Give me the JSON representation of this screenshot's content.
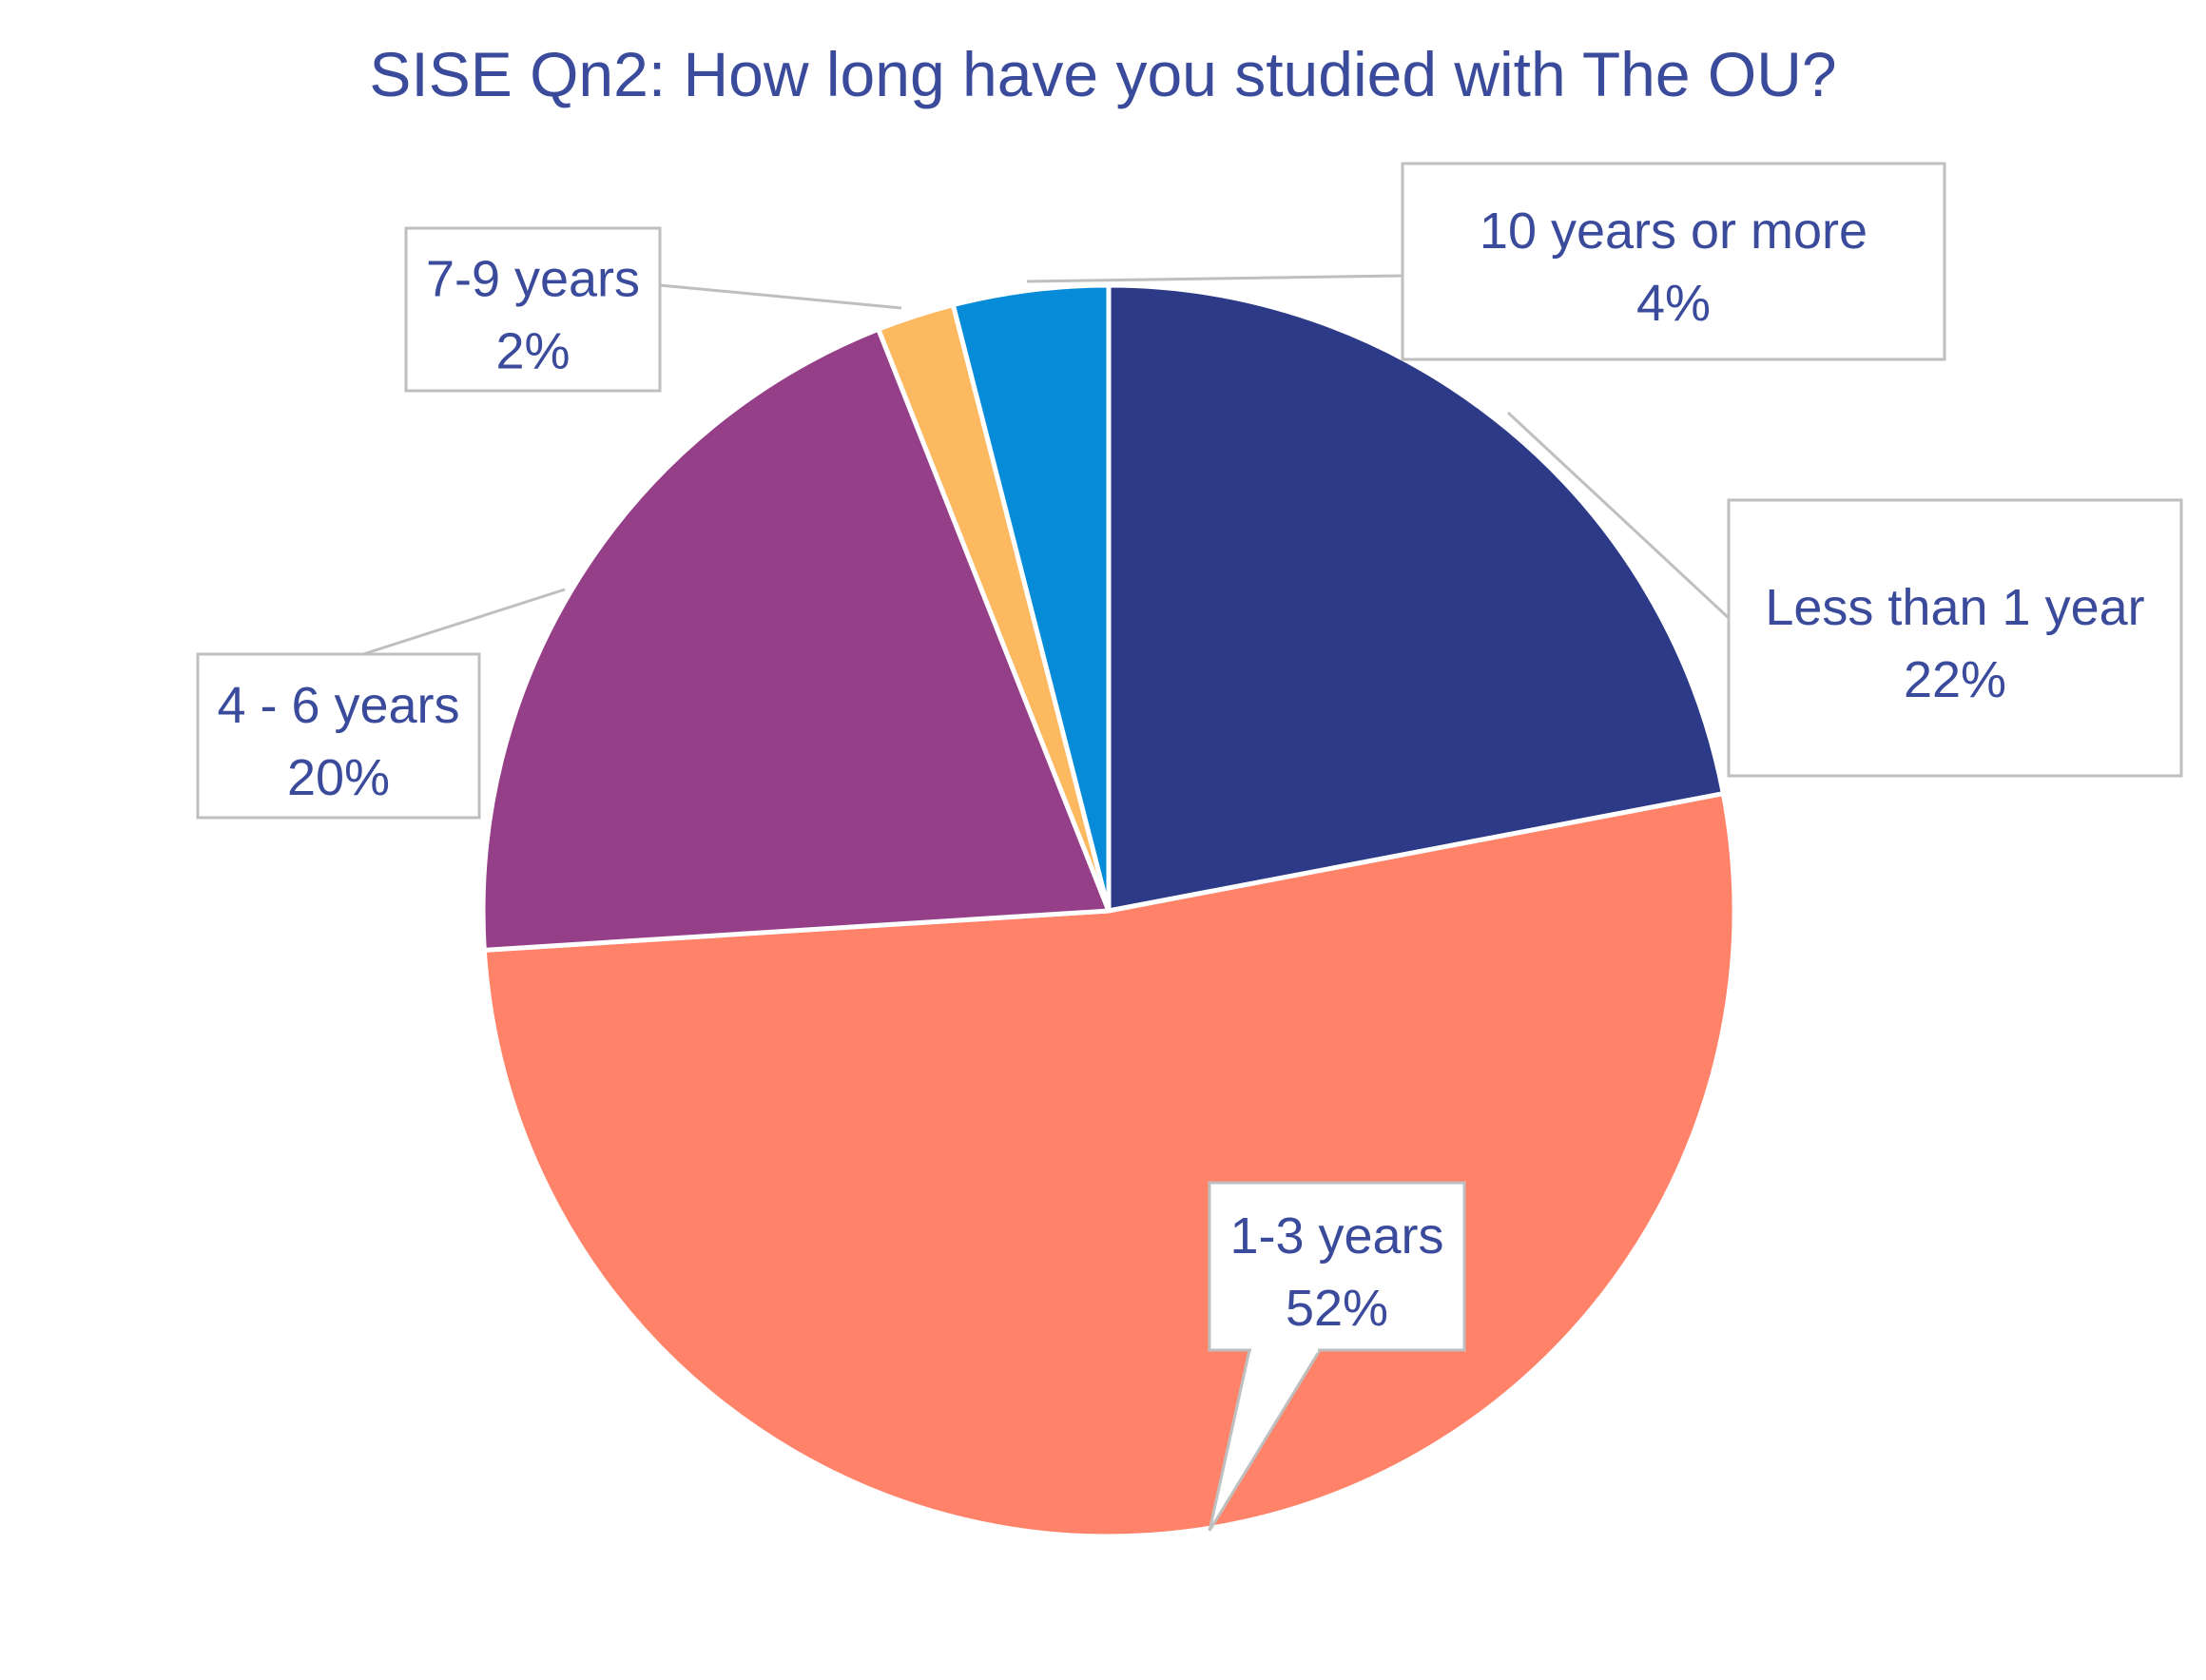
{
  "chart_data": {
    "type": "pie",
    "title": "SISE Qn2: How long have you studied with The OU?",
    "categories": [
      "Less than 1 year",
      "1-3 years",
      "4 - 6 years",
      "7-9 years",
      "10 years or more"
    ],
    "values": [
      22,
      52,
      20,
      2,
      4
    ],
    "value_labels": [
      "22%",
      "52%",
      "20%",
      "2%",
      "4%"
    ],
    "colors": [
      "#2c3a87",
      "#ff8269",
      "#943f88",
      "#fdb95f",
      "#068bd9"
    ],
    "label_color": "#3b4b9b",
    "start_angle": "12 o'clock",
    "direction": "clockwise",
    "legend": "none"
  }
}
